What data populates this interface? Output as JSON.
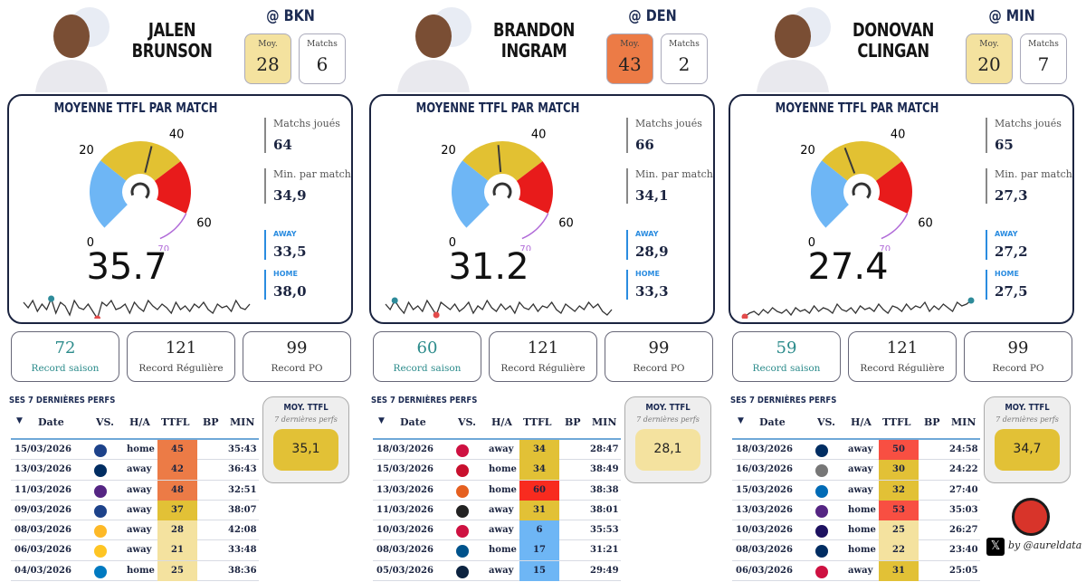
{
  "labels": {
    "moy_short": "Moy.",
    "matchs": "Matchs",
    "card_title": "MOYENNE TTFL PAR MATCH",
    "matchs_joues": "Matchs joués",
    "min_par_match": "Min. par match",
    "away": "AWAY",
    "home": "HOME",
    "record_saison": "Record saison",
    "record_reguliere": "Record Régulière",
    "record_po": "Record PO",
    "perfs_title": "SES 7 DERNIÈRES PERFS",
    "moy_ttfl": "MOY. TTFL",
    "dernieres_perfs": "7 dernières perfs",
    "gauge_ticks": [
      "0",
      "20",
      "40",
      "60",
      "70"
    ]
  },
  "columns": [
    "Date",
    "VS.",
    "H/A",
    "TTFL",
    "BP",
    "MIN"
  ],
  "colors": {
    "gauge_blue": "#6eb6f5",
    "gauge_yellow": "#e2c132",
    "gauge_red": "#e81b1b",
    "cell_red": "#f84f42",
    "cell_orange": "#ec7b46",
    "cell_gold": "#e2c136",
    "cell_lightyellow": "#f4e29f",
    "cell_blue": "#6eb6f5"
  },
  "players": [
    {
      "name": "JALEN\nBRUNSON",
      "matchup": "@ BKN",
      "moy": "28",
      "matchs": "6",
      "moy_bg": "#f4e29f",
      "gauge_value": 35.7,
      "avg": "35.7",
      "matchs_joues": "64",
      "min_par_match": "34,9",
      "away": "33,5",
      "home": "38,0",
      "record_saison": "72",
      "record_reguliere": "121",
      "record_po": "99",
      "moy7": "35,1",
      "moy7_bg": "#e2c136",
      "rows": [
        {
          "date": "15/03/2026",
          "ha": "home",
          "ttfl": "45",
          "min": "35:43",
          "bg": "#ec7b46",
          "team_color": "#1d428a"
        },
        {
          "date": "13/03/2026",
          "ha": "away",
          "ttfl": "42",
          "min": "36:43",
          "bg": "#ec7b46",
          "team_color": "#002d62"
        },
        {
          "date": "11/03/2026",
          "ha": "away",
          "ttfl": "48",
          "min": "32:51",
          "bg": "#ec7b46",
          "team_color": "#552583"
        },
        {
          "date": "09/03/2026",
          "ha": "away",
          "ttfl": "37",
          "min": "38:07",
          "bg": "#e2c136",
          "team_color": "#1d428a"
        },
        {
          "date": "08/03/2026",
          "ha": "away",
          "ttfl": "28",
          "min": "42:08",
          "bg": "#f4e29f",
          "team_color": "#fdb927"
        },
        {
          "date": "06/03/2026",
          "ha": "away",
          "ttfl": "21",
          "min": "33:48",
          "bg": "#f4e29f",
          "team_color": "#fec524"
        },
        {
          "date": "04/03/2026",
          "ha": "home",
          "ttfl": "25",
          "min": "38:36",
          "bg": "#f4e29f",
          "team_color": "#007ac1"
        }
      ]
    },
    {
      "name": "BRANDON\nINGRAM",
      "matchup": "@ DEN",
      "moy": "43",
      "matchs": "2",
      "moy_bg": "#ec7b46",
      "gauge_value": 31.2,
      "avg": "31.2",
      "matchs_joues": "66",
      "min_par_match": "34,1",
      "away": "28,9",
      "home": "33,3",
      "record_saison": "60",
      "record_reguliere": "121",
      "record_po": "99",
      "moy7": "28,1",
      "moy7_bg": "#f4e29f",
      "rows": [
        {
          "date": "18/03/2026",
          "ha": "away",
          "ttfl": "34",
          "min": "28:47",
          "bg": "#e2c136",
          "team_color": "#ce1141"
        },
        {
          "date": "15/03/2026",
          "ha": "home",
          "ttfl": "34",
          "min": "38:49",
          "bg": "#e2c136",
          "team_color": "#c8102e"
        },
        {
          "date": "13/03/2026",
          "ha": "home",
          "ttfl": "60",
          "min": "38:38",
          "bg": "#f82b1f",
          "team_color": "#e56020"
        },
        {
          "date": "11/03/2026",
          "ha": "away",
          "ttfl": "31",
          "min": "38:01",
          "bg": "#e2c136",
          "team_color": "#222222"
        },
        {
          "date": "10/03/2026",
          "ha": "away",
          "ttfl": "6",
          "min": "35:53",
          "bg": "#6eb6f5",
          "team_color": "#ce1141"
        },
        {
          "date": "08/03/2026",
          "ha": "home",
          "ttfl": "17",
          "min": "31:21",
          "bg": "#6eb6f5",
          "team_color": "#00538c"
        },
        {
          "date": "05/03/2026",
          "ha": "away",
          "ttfl": "15",
          "min": "29:49",
          "bg": "#6eb6f5",
          "team_color": "#0c2340"
        }
      ]
    },
    {
      "name": "DONOVAN\nCLINGAN",
      "matchup": "@ MIN",
      "moy": "20",
      "matchs": "7",
      "moy_bg": "#f4e29f",
      "gauge_value": 27.4,
      "avg": "27.4",
      "matchs_joues": "65",
      "min_par_match": "27,3",
      "away": "27,2",
      "home": "27,5",
      "record_saison": "59",
      "record_reguliere": "121",
      "record_po": "99",
      "moy7": "34,7",
      "moy7_bg": "#e2c136",
      "rows": [
        {
          "date": "18/03/2026",
          "ha": "away",
          "ttfl": "50",
          "min": "24:58",
          "bg": "#f84f42",
          "team_color": "#002d62"
        },
        {
          "date": "16/03/2026",
          "ha": "away",
          "ttfl": "30",
          "min": "24:22",
          "bg": "#e2c136",
          "team_color": "#777777"
        },
        {
          "date": "15/03/2026",
          "ha": "away",
          "ttfl": "32",
          "min": "27:40",
          "bg": "#e2c136",
          "team_color": "#006bb6"
        },
        {
          "date": "13/03/2026",
          "ha": "home",
          "ttfl": "53",
          "min": "35:03",
          "bg": "#f84f42",
          "team_color": "#552583"
        },
        {
          "date": "10/03/2026",
          "ha": "home",
          "ttfl": "25",
          "min": "26:27",
          "bg": "#f4e29f",
          "team_color": "#1d1160"
        },
        {
          "date": "08/03/2026",
          "ha": "home",
          "ttfl": "22",
          "min": "23:40",
          "bg": "#f4e29f",
          "team_color": "#002d62"
        },
        {
          "date": "06/03/2026",
          "ha": "away",
          "ttfl": "31",
          "min": "25:05",
          "bg": "#e2c136",
          "team_color": "#ce1141"
        }
      ]
    }
  ],
  "byline": "by @aureldata"
}
